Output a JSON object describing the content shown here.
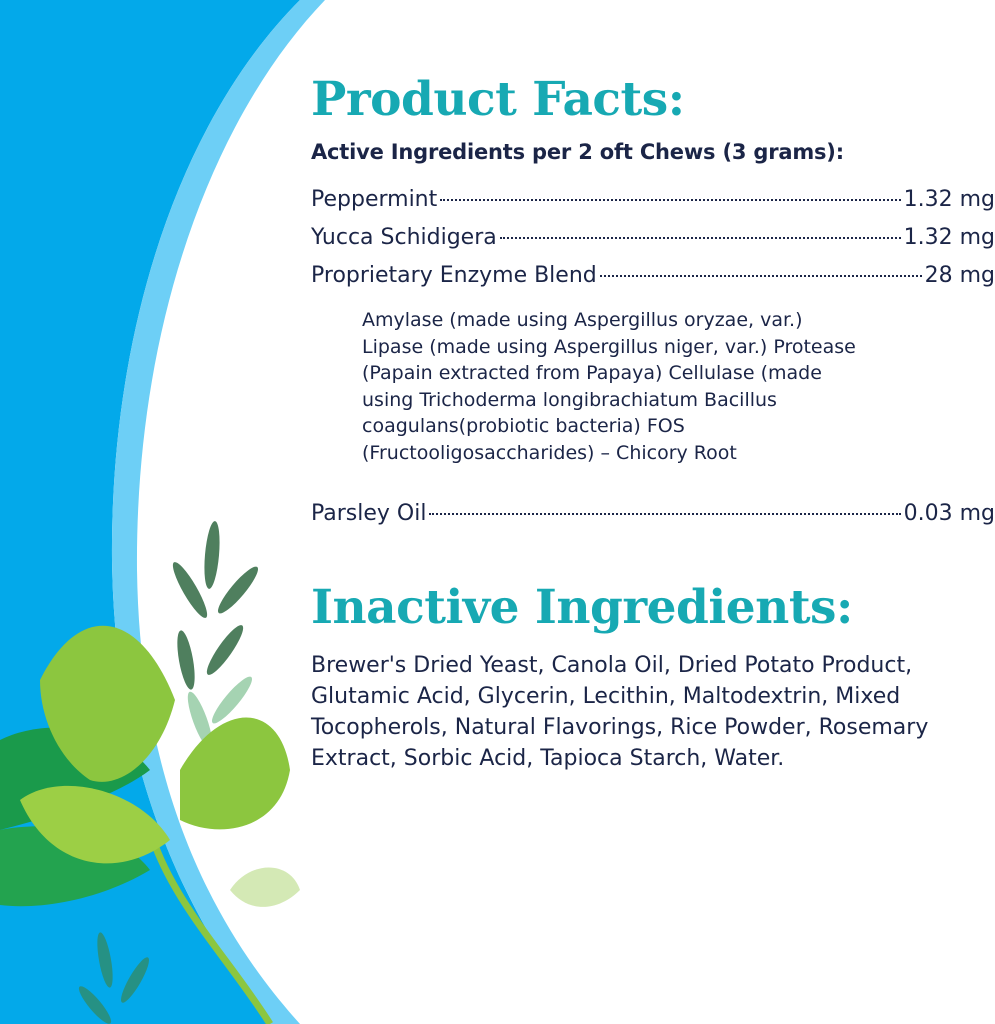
{
  "colors": {
    "heading": "#17a9b3",
    "text": "#1b2547",
    "background_blue": "#03a9ea",
    "stripe_light_blue": "#6dcff6",
    "leaf_green": "#8cc63f"
  },
  "product_facts": {
    "title": "Product Facts:",
    "subtitle": "Active Ingredients per 2 oft Chews (3 grams):",
    "ingredients": [
      {
        "name": "Peppermint",
        "amount": "1.32 mg"
      },
      {
        "name": "Yucca Schidigera",
        "amount": "1.32 mg"
      },
      {
        "name": "Proprietary Enzyme Blend",
        "amount": "28 mg"
      },
      {
        "name": "Parsley Oil",
        "amount": "0.03 mg"
      }
    ],
    "blend_details": "Amylase (made using Aspergillus oryzae, var.) Lipase (made using Aspergillus niger, var.) Protease (Papain extracted from Papaya) Cellulase (made using Trichoderma longibrachiatum Bacillus coagulans(probiotic bacteria) FOS (Fructooligosaccharides) – Chicory Root"
  },
  "inactive": {
    "title": "Inactive Ingredients:",
    "text": "Brewer's Dried Yeast, Canola Oil, Dried Potato Product, Glutamic Acid, Glycerin, Lecithin, Maltodextrin, Mixed Tocopherols, Natural Flavorings, Rice Powder, Rosemary Extract, Sorbic Acid, Tapioca Starch, Water."
  }
}
